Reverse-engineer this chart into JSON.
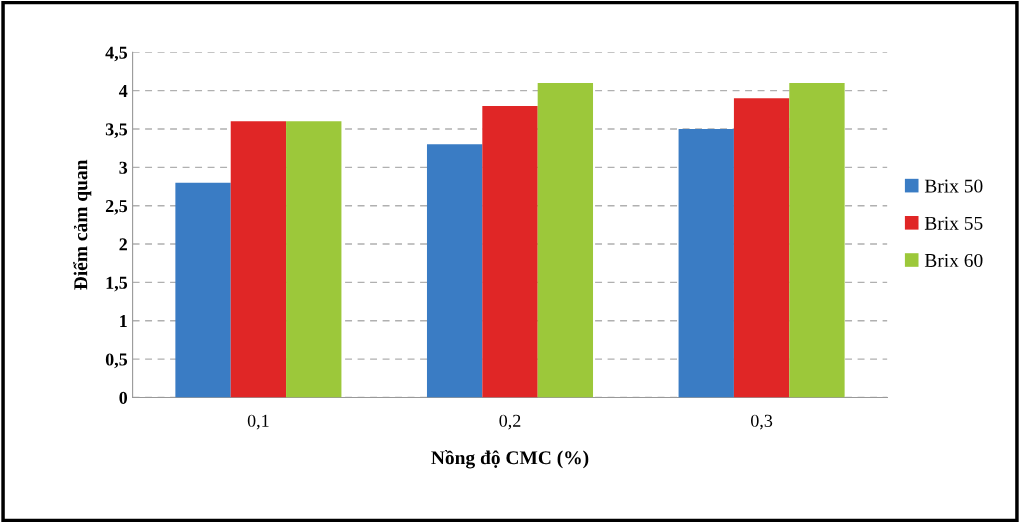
{
  "chart_data": {
    "type": "bar",
    "xlabel": "Nồng độ CMC (%)",
    "ylabel": "Điểm cảm quan",
    "categories": [
      "0,1",
      "0,2",
      "0,3"
    ],
    "series": [
      {
        "name": "Brix 50",
        "color": "#3a7cc4",
        "values": [
          2.8,
          3.3,
          3.5
        ]
      },
      {
        "name": "Brix 55",
        "color": "#e02626",
        "values": [
          3.6,
          3.8,
          3.9
        ]
      },
      {
        "name": "Brix 60",
        "color": "#9cc83a",
        "values": [
          3.6,
          4.1,
          4.1
        ]
      }
    ],
    "ylim": [
      0,
      4.5
    ],
    "yticks": [
      0,
      {
        "value": 0.5,
        "label": "0,5"
      },
      1,
      {
        "value": 1.5,
        "label": "1,5"
      },
      2,
      {
        "value": 2.5,
        "label": "2,5"
      },
      3,
      {
        "value": 3.5,
        "label": "3,5"
      },
      4,
      {
        "value": 4.5,
        "label": "4,5"
      }
    ],
    "grid": "y",
    "legend": "right"
  }
}
